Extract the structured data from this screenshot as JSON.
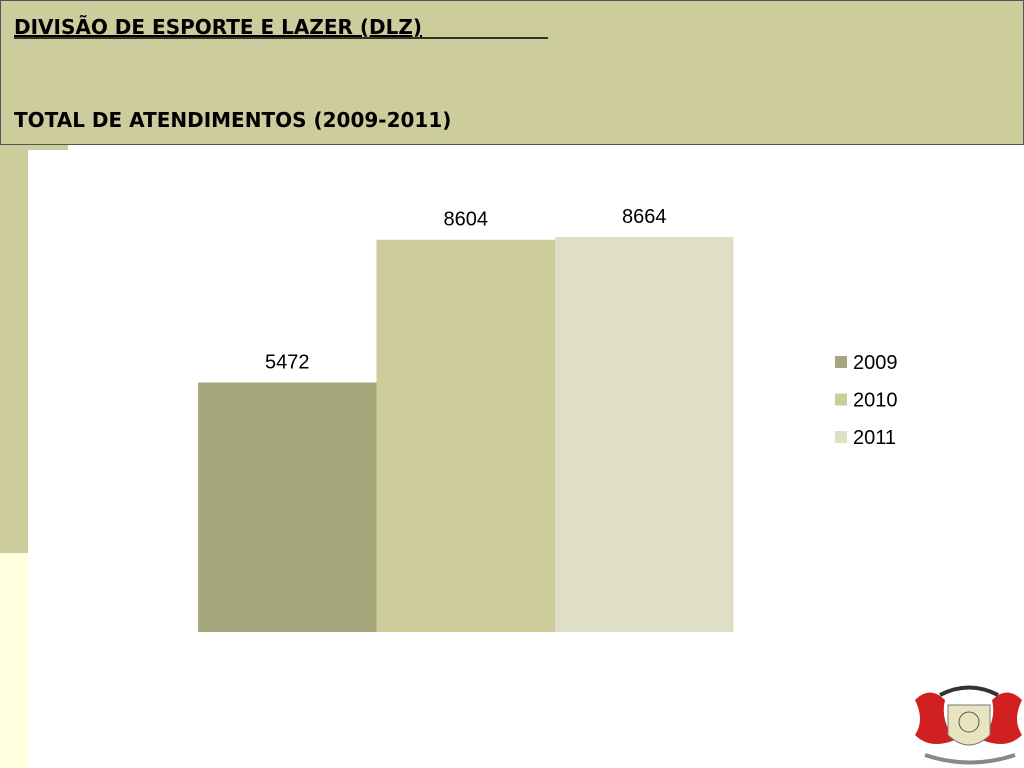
{
  "chart_data": {
    "type": "bar",
    "title": "DIVISÃO DE ESPORTE E LAZER (DLZ)",
    "subtitle": "TOTAL DE ATENDIMENTOS (2009-2011)",
    "categories": [
      null
    ],
    "series": [
      {
        "name": "2009",
        "color": "#a6a77c",
        "values": [
          5472
        ]
      },
      {
        "name": "2010",
        "color": "#cccc9c",
        "values": [
          8604
        ]
      },
      {
        "name": "2011",
        "color": "#dfdfc6",
        "values": [
          8664
        ]
      }
    ],
    "legend": "right"
  }
}
